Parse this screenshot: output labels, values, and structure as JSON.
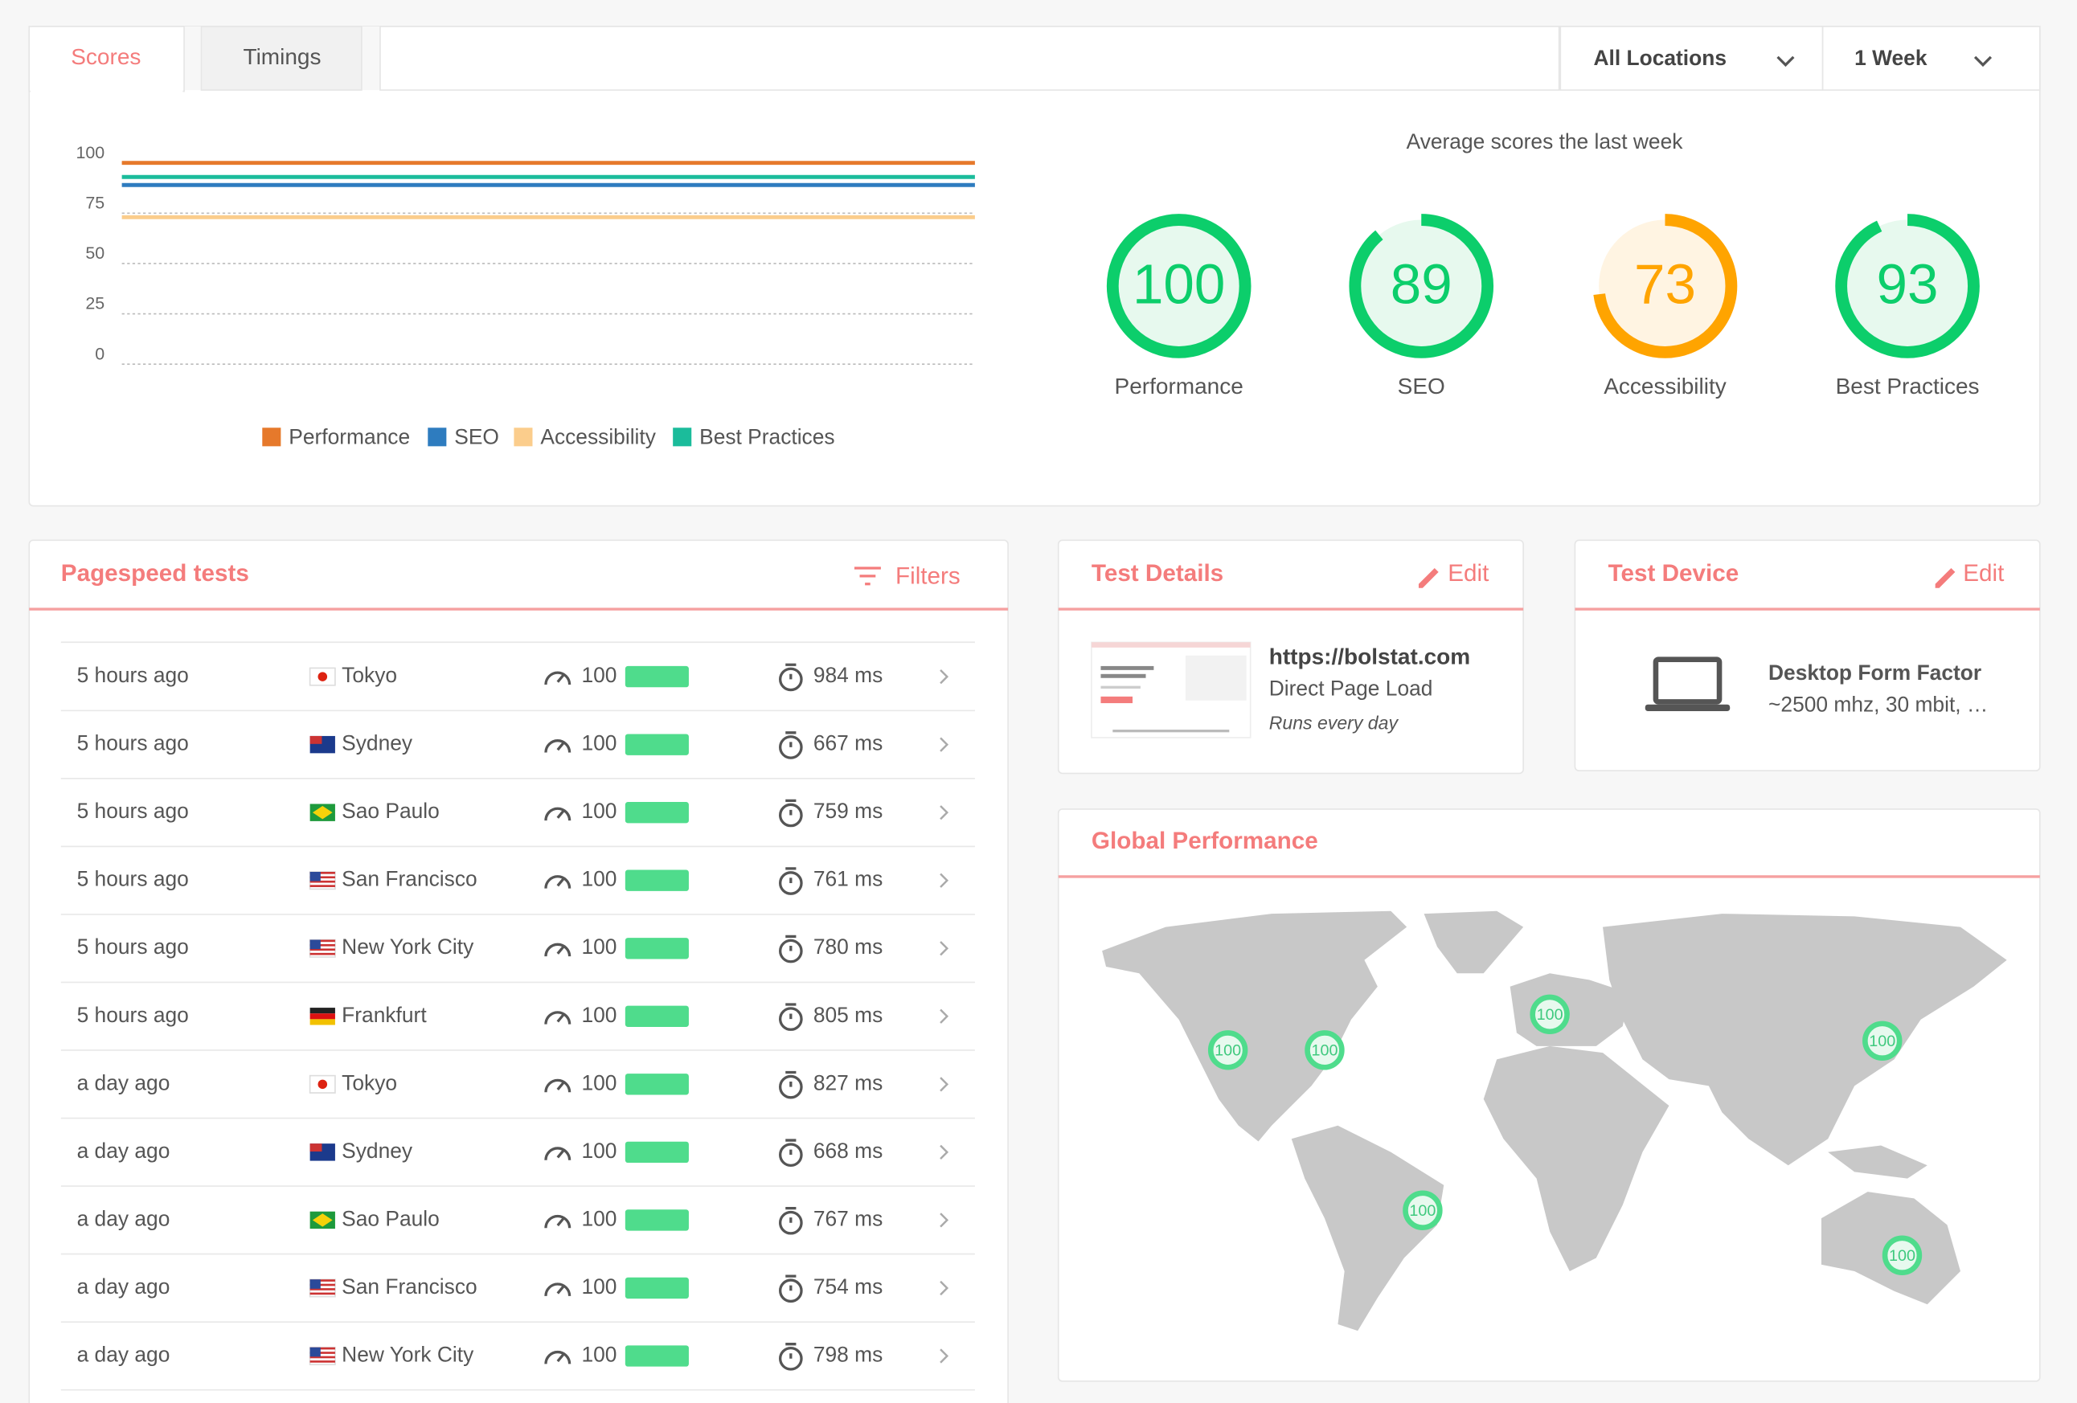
{
  "tabs": [
    "Scores",
    "Timings"
  ],
  "filters": {
    "location": "All Locations",
    "period": "1 Week"
  },
  "chart_data": {
    "type": "line",
    "categories": [
      null,
      null,
      null,
      null,
      null,
      null,
      null
    ],
    "series": [
      {
        "name": "Performance",
        "color": "#e6792b",
        "values": [
          100,
          100,
          100,
          100,
          100,
          100,
          100
        ]
      },
      {
        "name": "SEO",
        "color": "#2e7cbf",
        "values": [
          89,
          89,
          89,
          89,
          89,
          89,
          89
        ]
      },
      {
        "name": "Accessibility",
        "color": "#fbcd8c",
        "values": [
          73,
          73,
          73,
          73,
          73,
          73,
          73
        ]
      },
      {
        "name": "Best Practices",
        "color": "#1bbc9b",
        "values": [
          93,
          93,
          93,
          93,
          93,
          93,
          93
        ]
      }
    ],
    "ylim": [
      0,
      100
    ],
    "yticks": [
      0,
      25,
      50,
      75,
      100
    ],
    "grid": true
  },
  "averages": {
    "title": "Average scores the last week",
    "gauges": [
      {
        "label": "Performance",
        "value": 100
      },
      {
        "label": "SEO",
        "value": 89
      },
      {
        "label": "Accessibility",
        "value": 73
      },
      {
        "label": "Best Practices",
        "value": 93
      }
    ]
  },
  "pagespeed_tests": {
    "title": "Pagespeed tests",
    "filters": "Filters",
    "rows": [
      {
        "time": "5 hours ago",
        "location": "Tokyo",
        "score": 100,
        "duration": "984 ms"
      },
      {
        "time": "5 hours ago",
        "location": "Sydney",
        "score": 100,
        "duration": "667 ms"
      },
      {
        "time": "5 hours ago",
        "location": "Sao Paulo",
        "score": 100,
        "duration": "759 ms"
      },
      {
        "time": "5 hours ago",
        "location": "San Francisco",
        "score": 100,
        "duration": "761 ms"
      },
      {
        "time": "5 hours ago",
        "location": "New York City",
        "score": 100,
        "duration": "780 ms"
      },
      {
        "time": "5 hours ago",
        "location": "Frankfurt",
        "score": 100,
        "duration": "805 ms"
      },
      {
        "time": "a day ago",
        "location": "Tokyo",
        "score": 100,
        "duration": "827 ms"
      },
      {
        "time": "a day ago",
        "location": "Sydney",
        "score": 100,
        "duration": "668 ms"
      },
      {
        "time": "a day ago",
        "location": "Sao Paulo",
        "score": 100,
        "duration": "767 ms"
      },
      {
        "time": "a day ago",
        "location": "San Francisco",
        "score": 100,
        "duration": "754 ms"
      },
      {
        "time": "a day ago",
        "location": "New York City",
        "score": 100,
        "duration": "798 ms"
      }
    ]
  },
  "test_details": {
    "title": "Test Details",
    "edit": "Edit",
    "url": "https://bolstat.com",
    "mode": "Direct Page Load",
    "schedule": "Runs every day"
  },
  "test_device": {
    "title": "Test Device",
    "edit": "Edit",
    "name": "Desktop Form Factor",
    "specs": "~2500 mhz, 30 mbit, …"
  },
  "global_performance": {
    "title": "Global Performance",
    "markers": [
      100,
      100,
      100,
      100,
      100,
      100
    ]
  }
}
